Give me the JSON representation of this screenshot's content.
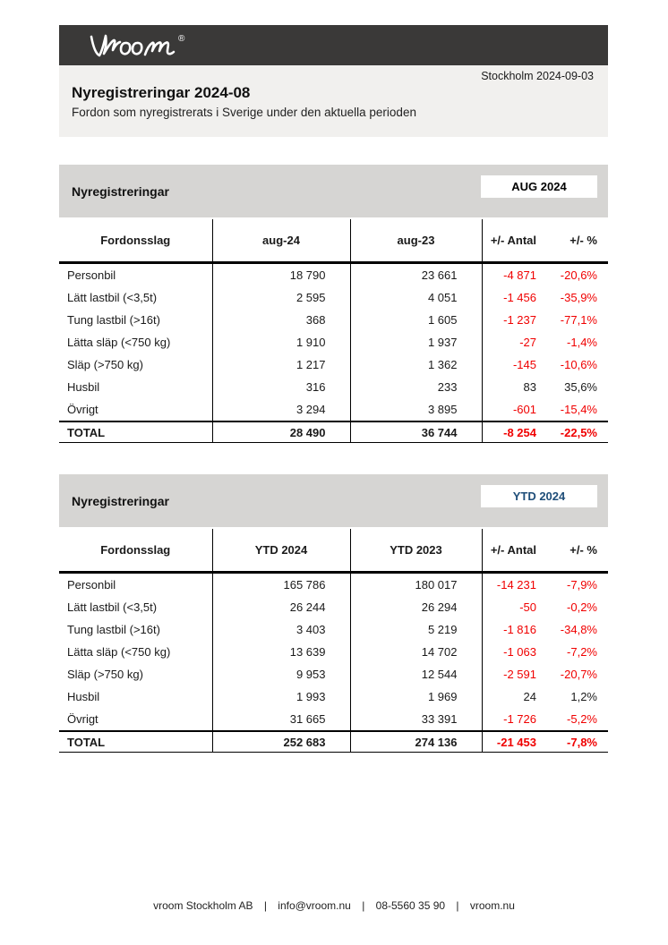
{
  "logo": {
    "brand": "vroom",
    "registered_mark": "®"
  },
  "header": {
    "date_line": "Stockholm 2024-09-03",
    "title": "Nyregistreringar 2024-08",
    "subtitle": "Fordon som nyregistrerats i Sverige under den aktuella perioden"
  },
  "colors": {
    "brand_bar": "#3a3938",
    "intro_background": "#f1f0ee",
    "section_bar_background": "#d6d5d3",
    "negative_value": "#f00000",
    "aug_badge_text": "#000000",
    "ytd_badge_text": "#1f4e79"
  },
  "tables": [
    {
      "section_title": "Nyregistreringar",
      "badge": "AUG 2024",
      "badge_color": "#000000",
      "columns": [
        "Fordonsslag",
        "aug-24",
        "aug-23",
        "+/- Antal",
        "+/- %"
      ],
      "rows": [
        [
          "Personbil",
          "18 790",
          "23 661",
          "-4 871",
          "-20,6%"
        ],
        [
          "Lätt lastbil (<3,5t)",
          "2 595",
          "4 051",
          "-1 456",
          "-35,9%"
        ],
        [
          "Tung lastbil (>16t)",
          "368",
          "1 605",
          "-1 237",
          "-77,1%"
        ],
        [
          "Lätta släp (<750 kg)",
          "1 910",
          "1 937",
          "-27",
          "-1,4%"
        ],
        [
          "Släp (>750 kg)",
          "1 217",
          "1 362",
          "-145",
          "-10,6%"
        ],
        [
          "Husbil",
          "316",
          "233",
          "83",
          "35,6%"
        ],
        [
          "Övrigt",
          "3 294",
          "3 895",
          "-601",
          "-15,4%"
        ]
      ],
      "total": [
        "TOTAL",
        "28 490",
        "36 744",
        "-8 254",
        "-22,5%"
      ]
    },
    {
      "section_title": "Nyregistreringar",
      "badge": "YTD 2024",
      "badge_color": "#1f4e79",
      "columns": [
        "Fordonsslag",
        "YTD 2024",
        "YTD 2023",
        "+/- Antal",
        "+/- %"
      ],
      "rows": [
        [
          "Personbil",
          "165 786",
          "180 017",
          "-14 231",
          "-7,9%"
        ],
        [
          "Lätt lastbil (<3,5t)",
          "26 244",
          "26 294",
          "-50",
          "-0,2%"
        ],
        [
          "Tung lastbil (>16t)",
          "3 403",
          "5 219",
          "-1 816",
          "-34,8%"
        ],
        [
          "Lätta släp (<750 kg)",
          "13 639",
          "14 702",
          "-1 063",
          "-7,2%"
        ],
        [
          "Släp (>750 kg)",
          "9 953",
          "12 544",
          "-2 591",
          "-20,7%"
        ],
        [
          "Husbil",
          "1 993",
          "1 969",
          "24",
          "1,2%"
        ],
        [
          "Övrigt",
          "31 665",
          "33 391",
          "-1 726",
          "-5,2%"
        ]
      ],
      "total": [
        "TOTAL",
        "252 683",
        "274 136",
        "-21 453",
        "-7,8%"
      ]
    }
  ],
  "footer": {
    "separator": "|",
    "company": "vroom Stockholm AB",
    "email": "info@vroom.nu",
    "phone": "08-5560 35 90",
    "website": "vroom.nu"
  }
}
